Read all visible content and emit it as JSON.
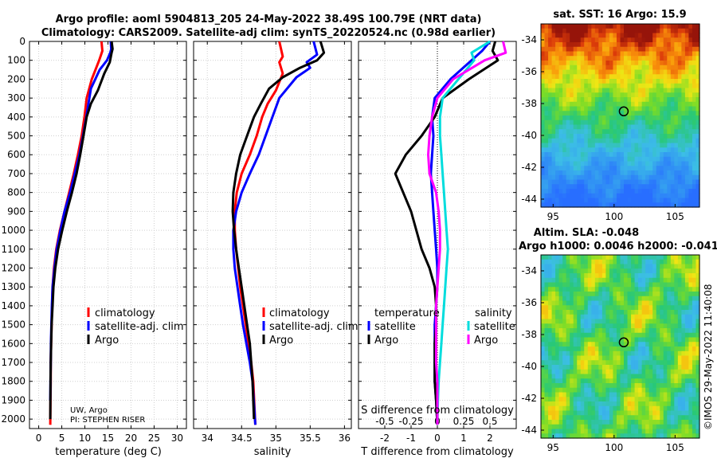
{
  "header": {
    "title_line1": "Argo profile: aoml 5904813_205 24-May-2022 38.49S 100.79E (NRT data)",
    "title_line2": "Climatology: CARS2009. Satellite-adj clim: synTS_20220524.nc (0.98d earlier)"
  },
  "chart_data": [
    {
      "type": "line",
      "id": "temperature",
      "xlabel": "temperature (deg C)",
      "xlim": [
        -2,
        32
      ],
      "xticks": [
        0,
        5,
        10,
        15,
        20,
        25,
        30
      ],
      "ylim": [
        0,
        2050
      ],
      "yticks": [
        0,
        100,
        200,
        300,
        400,
        500,
        600,
        700,
        800,
        900,
        1000,
        1100,
        1200,
        1300,
        1400,
        1500,
        1600,
        1700,
        1800,
        1900,
        2000
      ],
      "legend": [
        "climatology",
        "satellite-adj. clim",
        "Argo"
      ],
      "annotation": [
        "UW, Argo",
        "PI: STEPHEN RISER"
      ],
      "series": [
        {
          "name": "climatology",
          "color": "#ff0000",
          "x": [
            13.6,
            13.8,
            13.1,
            11.5,
            10.4,
            9.9,
            9.3,
            8.5,
            7.6,
            6.6,
            5.6,
            4.6,
            3.8,
            3.3,
            3.0,
            2.9,
            2.8,
            2.7,
            2.6,
            2.6,
            2.55,
            2.5
          ],
          "y": [
            0,
            50,
            100,
            200,
            300,
            400,
            500,
            600,
            700,
            800,
            900,
            1000,
            1100,
            1200,
            1300,
            1400,
            1500,
            1600,
            1700,
            1800,
            1900,
            2030
          ]
        },
        {
          "name": "satellite-adj. clim",
          "color": "#0000ff",
          "x": [
            15.6,
            15.7,
            15.5,
            14.8,
            13.2,
            11.3,
            10.3,
            9.6,
            8.8,
            7.8,
            6.8,
            5.6,
            4.7,
            3.9,
            3.4,
            3.0,
            2.85,
            2.75,
            2.65,
            2.6,
            2.55,
            2.5
          ],
          "y": [
            0,
            40,
            60,
            100,
            150,
            250,
            400,
            500,
            600,
            700,
            800,
            900,
            1000,
            1100,
            1200,
            1300,
            1400,
            1500,
            1600,
            1700,
            1800,
            1900
          ]
        },
        {
          "name": "Argo",
          "color": "#000000",
          "x": [
            15.8,
            16.0,
            15.8,
            15.4,
            14.2,
            12.8,
            11.3,
            10.4,
            9.7,
            9.0,
            8.2,
            7.2,
            6.1,
            5.1,
            4.2,
            3.6,
            3.2,
            3.0,
            2.8,
            2.7,
            2.6,
            2.55,
            2.5
          ],
          "y": [
            0,
            40,
            60,
            110,
            170,
            260,
            330,
            400,
            500,
            600,
            700,
            800,
            900,
            1000,
            1100,
            1200,
            1300,
            1400,
            1500,
            1600,
            1700,
            1800,
            2000
          ]
        }
      ]
    },
    {
      "type": "line",
      "id": "salinity",
      "xlabel": "salinity",
      "xlim": [
        33.8,
        36.1
      ],
      "xticks": [
        34,
        34.5,
        35,
        35.5,
        36
      ],
      "ylim": [
        0,
        2050
      ],
      "legend": [
        "climatology",
        "satellite-adj. clim",
        "Argo"
      ],
      "series": [
        {
          "name": "climatology",
          "color": "#ff0000",
          "x": [
            35.05,
            35.1,
            35.05,
            35.1,
            35.0,
            34.88,
            34.8,
            34.72,
            34.62,
            34.5,
            34.43,
            34.4,
            34.4,
            34.42,
            34.45,
            34.48,
            34.52,
            34.56,
            34.6,
            34.64,
            34.67,
            34.7
          ],
          "y": [
            0,
            80,
            110,
            170,
            260,
            330,
            400,
            500,
            600,
            700,
            800,
            900,
            1000,
            1100,
            1200,
            1300,
            1400,
            1500,
            1600,
            1700,
            1800,
            2030
          ]
        },
        {
          "name": "satellite-adj. clim",
          "color": "#0000ff",
          "x": [
            35.55,
            35.6,
            35.45,
            35.5,
            35.3,
            35.05,
            34.95,
            34.85,
            34.75,
            34.62,
            34.5,
            34.42,
            34.38,
            34.38,
            34.4,
            34.44,
            34.48,
            34.52,
            34.57,
            34.62,
            34.66,
            34.7
          ],
          "y": [
            0,
            70,
            110,
            140,
            190,
            300,
            400,
            500,
            600,
            700,
            800,
            900,
            1000,
            1100,
            1200,
            1300,
            1400,
            1500,
            1600,
            1700,
            1800,
            2030
          ]
        },
        {
          "name": "Argo",
          "color": "#000000",
          "x": [
            35.65,
            35.7,
            35.6,
            35.35,
            35.1,
            34.9,
            34.78,
            34.68,
            34.58,
            34.48,
            34.42,
            34.38,
            34.37,
            34.39,
            34.42,
            34.46,
            34.5,
            34.54,
            34.58,
            34.62,
            34.66,
            34.68
          ],
          "y": [
            0,
            60,
            100,
            140,
            190,
            250,
            330,
            400,
            500,
            600,
            700,
            800,
            900,
            1000,
            1100,
            1200,
            1300,
            1400,
            1500,
            1600,
            1800,
            2000
          ]
        }
      ]
    },
    {
      "type": "line",
      "id": "difference",
      "xlabel": "T difference from climatology",
      "xlabel_top": "S difference from climatology",
      "xlim": [
        -3,
        3
      ],
      "xticks": [
        -2,
        -1,
        0,
        1,
        2
      ],
      "xticks_top": [
        -0.5,
        -0.25,
        0,
        0.25,
        0.5
      ],
      "ylim": [
        0,
        2050
      ],
      "legend_left_title": "temperature",
      "legend_right_title": "salinity",
      "legend": [
        "satellite",
        "Argo",
        "satellite",
        "Argo"
      ],
      "series": [
        {
          "name": "T satellite",
          "color": "#0000ff",
          "x": [
            2.0,
            1.7,
            1.3,
            0.5,
            -0.1,
            -0.2,
            -0.15,
            -0.2,
            -0.25,
            -0.2,
            -0.15,
            -0.1,
            -0.05,
            0,
            0,
            -0.05,
            -0.1,
            -0.1,
            -0.1,
            -0.1,
            -0.05,
            0
          ],
          "y": [
            0,
            50,
            100,
            200,
            300,
            400,
            500,
            600,
            700,
            800,
            900,
            1000,
            1100,
            1200,
            1300,
            1400,
            1500,
            1600,
            1700,
            1800,
            1900,
            2030
          ]
        },
        {
          "name": "T Argo",
          "color": "#000000",
          "x": [
            2.2,
            2.1,
            2.3,
            1.2,
            0.2,
            -0.1,
            -0.6,
            -1.2,
            -1.6,
            -1.3,
            -1.0,
            -0.8,
            -0.6,
            -0.3,
            -0.1,
            -0.05,
            -0.05,
            -0.1,
            -0.1,
            -0.1,
            -0.05,
            0
          ],
          "y": [
            0,
            50,
            100,
            200,
            300,
            400,
            500,
            600,
            700,
            800,
            900,
            1000,
            1100,
            1200,
            1300,
            1400,
            1500,
            1600,
            1700,
            1800,
            1900,
            2030
          ]
        },
        {
          "name": "S satellite",
          "color": "#00dddd",
          "x": [
            2.0,
            1.3,
            1.4,
            0.8,
            0.2,
            0.1,
            0.1,
            0.15,
            0.2,
            0.25,
            0.3,
            0.35,
            0.4,
            0.35,
            0.3,
            0.25,
            0.2,
            0.15,
            0.1,
            0.05,
            0.02,
            0
          ],
          "y": [
            0,
            60,
            100,
            200,
            300,
            400,
            500,
            600,
            700,
            800,
            900,
            1000,
            1100,
            1200,
            1300,
            1400,
            1500,
            1600,
            1700,
            1800,
            1900,
            2030
          ]
        },
        {
          "name": "S Argo",
          "color": "#ff00ff",
          "x": [
            2.5,
            2.6,
            1.8,
            0.6,
            0.0,
            -0.2,
            -0.3,
            -0.35,
            -0.3,
            -0.05,
            0.05,
            0.1,
            0.1,
            0.05,
            0.0,
            -0.05,
            -0.05,
            -0.05,
            -0.05,
            0,
            0,
            0
          ],
          "y": [
            0,
            60,
            100,
            200,
            300,
            400,
            500,
            600,
            700,
            800,
            900,
            1000,
            1100,
            1200,
            1300,
            1400,
            1500,
            1600,
            1700,
            1800,
            1900,
            2030
          ]
        }
      ]
    },
    {
      "type": "heatmap",
      "id": "sst_map",
      "title": "sat. SST: 16 Argo: 15.9",
      "xlim": [
        94,
        107
      ],
      "ylim": [
        -44.5,
        -33
      ],
      "xticks": [
        95,
        100,
        105
      ],
      "yticks": [
        -34,
        -36,
        -38,
        -40,
        -42,
        -44
      ],
      "marker": {
        "lon": 100.79,
        "lat": -38.49
      }
    },
    {
      "type": "heatmap",
      "id": "sla_map",
      "title_line1": "Altim. SLA: -0.048",
      "title_line2": "Argo h1000: 0.0046 h2000: -0.041",
      "xlim": [
        94,
        107
      ],
      "ylim": [
        -44.5,
        -33
      ],
      "xticks": [
        95,
        100,
        105
      ],
      "yticks": [
        -34,
        -36,
        -38,
        -40,
        -42,
        -44
      ],
      "marker": {
        "lon": 100.79,
        "lat": -38.49
      }
    }
  ],
  "side_label": "©IMOS 29-May-2022 11:40:08",
  "colors": {
    "climatology": "#ff0000",
    "satellite_adj": "#0000ff",
    "argo": "#000000",
    "s_satellite": "#00dddd",
    "s_argo": "#ff00ff"
  }
}
